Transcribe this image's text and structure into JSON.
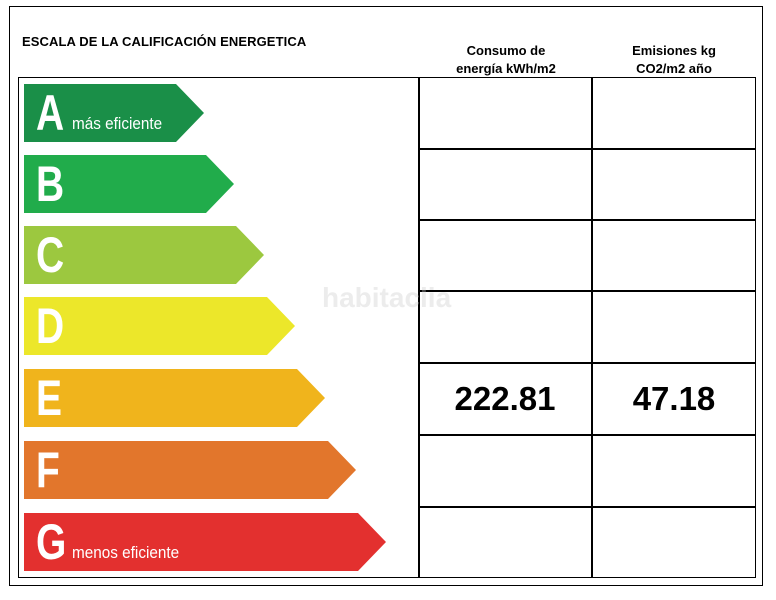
{
  "title": "ESCALA DE LA CALIFICACIÓN ENERGETICA",
  "columns": {
    "consumo": {
      "line1": "Consumo de",
      "line2": "energía kWh/m2"
    },
    "emisiones": {
      "line1": "Emisiones kg",
      "line2": "CO2/m2 año"
    }
  },
  "ratings": [
    {
      "letter": "A",
      "note": "más eficiente",
      "color": "#1a8f48"
    },
    {
      "letter": "B",
      "note": "",
      "color": "#21ac4b"
    },
    {
      "letter": "C",
      "note": "",
      "color": "#9cc83f"
    },
    {
      "letter": "D",
      "note": "",
      "color": "#ece72a"
    },
    {
      "letter": "E",
      "note": "",
      "color": "#f0b41c"
    },
    {
      "letter": "F",
      "note": "",
      "color": "#e2762c"
    },
    {
      "letter": "G",
      "note": "menos eficiente",
      "color": "#e3302f"
    }
  ],
  "values": {
    "rating": "E",
    "consumo": "222.81",
    "emisiones": "47.18"
  },
  "watermark": "habitaclia"
}
